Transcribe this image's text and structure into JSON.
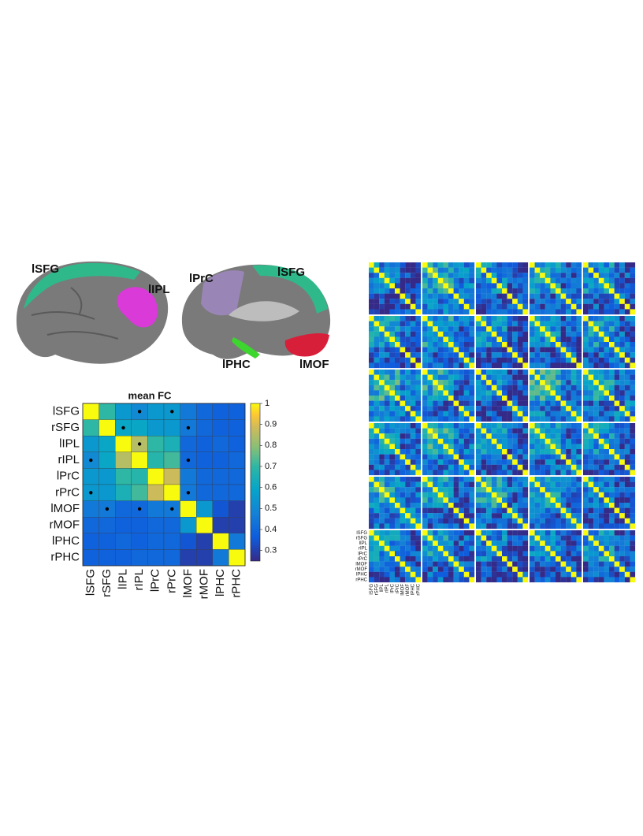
{
  "brain_labels": {
    "lateral": [
      "lSFG",
      "lIPL"
    ],
    "medial": [
      "lPrC",
      "lSFG",
      "lPHC",
      "lMOF"
    ]
  },
  "chart_data": {
    "type": "heatmap",
    "title": "mean FC",
    "categories": [
      "lSFG",
      "rSFG",
      "lIPL",
      "rIPL",
      "lPrC",
      "rPrC",
      "lMOF",
      "rMOF",
      "lPHC",
      "rPHC"
    ],
    "values": [
      [
        1,
        0.7,
        0.55,
        0.5,
        0.55,
        0.55,
        0.45,
        0.4,
        0.38,
        0.38
      ],
      [
        0.7,
        1,
        0.6,
        0.6,
        0.55,
        0.55,
        0.45,
        0.4,
        0.38,
        0.38
      ],
      [
        0.55,
        0.6,
        1,
        0.85,
        0.7,
        0.65,
        0.4,
        0.38,
        0.4,
        0.38
      ],
      [
        0.5,
        0.6,
        0.85,
        1,
        0.68,
        0.72,
        0.4,
        0.38,
        0.38,
        0.4
      ],
      [
        0.55,
        0.55,
        0.7,
        0.68,
        1,
        0.88,
        0.45,
        0.4,
        0.4,
        0.4
      ],
      [
        0.55,
        0.55,
        0.65,
        0.72,
        0.88,
        1,
        0.45,
        0.4,
        0.4,
        0.4
      ],
      [
        0.45,
        0.45,
        0.4,
        0.4,
        0.45,
        0.45,
        1,
        0.55,
        0.35,
        0.3
      ],
      [
        0.4,
        0.4,
        0.38,
        0.38,
        0.4,
        0.4,
        0.55,
        1,
        0.3,
        0.3
      ],
      [
        0.38,
        0.38,
        0.4,
        0.38,
        0.4,
        0.4,
        0.35,
        0.3,
        1,
        0.45
      ],
      [
        0.38,
        0.38,
        0.38,
        0.4,
        0.4,
        0.4,
        0.3,
        0.3,
        0.45,
        1
      ]
    ],
    "markers": [
      {
        "row": "lSFG",
        "col": "rIPL"
      },
      {
        "row": "lSFG",
        "col": "rPrC"
      },
      {
        "row": "rSFG",
        "col": "lIPL"
      },
      {
        "row": "rSFG",
        "col": "lMOF"
      },
      {
        "row": "lIPL",
        "col": "rIPL"
      },
      {
        "row": "rIPL",
        "col": "lSFG"
      },
      {
        "row": "rIPL",
        "col": "lMOF"
      },
      {
        "row": "rPrC",
        "col": "lSFG"
      },
      {
        "row": "rPrC",
        "col": "lMOF"
      },
      {
        "row": "lMOF",
        "col": "rSFG"
      },
      {
        "row": "lMOF",
        "col": "rIPL"
      },
      {
        "row": "lMOF",
        "col": "rPrC"
      }
    ],
    "colorbar": {
      "lim": [
        0.25,
        1
      ],
      "ticks": [
        1,
        0.9,
        0.8,
        0.7,
        0.6,
        0.5,
        0.4,
        0.3
      ]
    }
  }
}
